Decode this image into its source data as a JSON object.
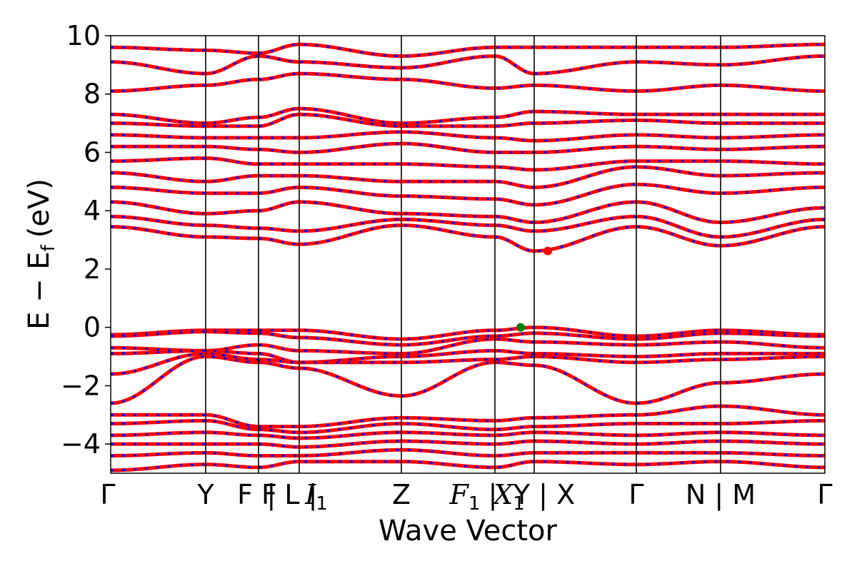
{
  "chart_data": {
    "type": "line",
    "xlabel": "Wave Vector",
    "ylabel": "E − E",
    "ylabel_sub": "f",
    "ylabel_unit": "(eV)",
    "ylim": [
      -5,
      10
    ],
    "xlim": [
      0,
      1
    ],
    "yticks": [
      10,
      8,
      6,
      4,
      2,
      0,
      -2,
      -4
    ],
    "ytick_labels": [
      "10",
      "8",
      "6",
      "4",
      "2",
      "0",
      "−2",
      "−4"
    ],
    "grid": false,
    "legend": "none",
    "colors": {
      "bands_up": "#ff0000",
      "bands_down": "#0000ff",
      "cbm": "#ff0000",
      "vbm": "#008000",
      "kpath": "#000000"
    },
    "kpoints": [
      {
        "x": 0.0,
        "label": "Γ"
      },
      {
        "x": 0.133,
        "label": "Y"
      },
      {
        "x": 0.207,
        "label": "F F"
      },
      {
        "x": 0.264,
        "label": "| L |"
      },
      {
        "x": 0.407,
        "label": "Z"
      },
      {
        "x": 0.538,
        "label": "X"
      },
      {
        "x": 0.593,
        "label": "Y | X"
      },
      {
        "x": 0.736,
        "label": "Γ"
      },
      {
        "x": 0.854,
        "label": "N | M"
      },
      {
        "x": 1.0,
        "label": "Γ"
      }
    ],
    "kpoint_subscripts": {
      "l_label": "1",
      "f_label": "1",
      "x_label": "1"
    },
    "kpoint_italic": {
      "l_label": "I",
      "f_label": "F",
      "x_label": "X"
    },
    "valence_band_max": {
      "x": 0.574,
      "y": 0.0
    },
    "conduction_band_min": {
      "x": 0.612,
      "y": 2.62
    },
    "series": [
      {
        "values_x": [
          0,
          0.133,
          0.207,
          0.264,
          0.407,
          0.538,
          0.593,
          0.736,
          0.854,
          1
        ],
        "values": [
          -0.25,
          -0.1,
          -0.1,
          -0.1,
          -0.4,
          -0.1,
          0.0,
          -0.3,
          -0.1,
          -0.25
        ]
      },
      {
        "values_x": [
          0,
          0.133,
          0.207,
          0.264,
          0.407,
          0.538,
          0.593,
          0.736,
          0.854,
          1
        ],
        "values": [
          -0.3,
          -0.15,
          -0.2,
          -0.35,
          -0.6,
          -0.3,
          -0.2,
          -0.4,
          -0.2,
          -0.3
        ]
      },
      {
        "values_x": [
          0,
          0.133,
          0.207,
          0.264,
          0.407,
          0.538,
          0.593,
          0.736,
          0.854,
          1
        ],
        "values": [
          -0.7,
          -0.8,
          -0.6,
          -0.8,
          -0.9,
          -0.4,
          -0.5,
          -0.6,
          -0.5,
          -0.7
        ]
      },
      {
        "values_x": [
          0,
          0.133,
          0.207,
          0.264,
          0.407,
          0.538,
          0.593,
          0.736,
          0.854,
          1
        ],
        "values": [
          -0.9,
          -0.8,
          -0.9,
          -1.2,
          -1.0,
          -0.8,
          -0.9,
          -1.0,
          -0.9,
          -0.9
        ]
      },
      {
        "values_x": [
          0,
          0.133,
          0.207,
          0.264,
          0.407,
          0.538,
          0.593,
          0.736,
          0.854,
          1
        ],
        "values": [
          -1.6,
          -0.9,
          -1.1,
          -1.2,
          -1.2,
          -1.1,
          -1.0,
          -1.2,
          -1.1,
          -1.0
        ]
      },
      {
        "values_x": [
          0,
          0.133,
          0.207,
          0.264,
          0.407,
          0.538,
          0.593,
          0.736,
          0.854,
          1
        ],
        "values": [
          -2.6,
          -1.0,
          -1.2,
          -1.4,
          -2.35,
          -1.2,
          -1.3,
          -2.6,
          -1.9,
          -1.6
        ]
      },
      {
        "values_x": [
          0,
          0.133,
          0.207,
          0.264,
          0.407,
          0.538,
          0.593,
          0.736,
          0.854,
          1
        ],
        "values": [
          -3.0,
          -3.0,
          -3.4,
          -3.4,
          -3.1,
          -3.2,
          -3.1,
          -3.0,
          -2.7,
          -3.0
        ]
      },
      {
        "values_x": [
          0,
          0.133,
          0.207,
          0.264,
          0.407,
          0.538,
          0.593,
          0.736,
          0.854,
          1
        ],
        "values": [
          -3.3,
          -3.2,
          -3.5,
          -3.6,
          -3.3,
          -3.5,
          -3.4,
          -3.3,
          -3.3,
          -3.2
        ]
      },
      {
        "values_x": [
          0,
          0.133,
          0.207,
          0.264,
          0.407,
          0.538,
          0.593,
          0.736,
          0.854,
          1
        ],
        "values": [
          -3.7,
          -3.6,
          -3.7,
          -3.8,
          -3.6,
          -3.7,
          -3.6,
          -3.7,
          -3.6,
          -3.7
        ]
      },
      {
        "values_x": [
          0,
          0.133,
          0.207,
          0.264,
          0.407,
          0.538,
          0.593,
          0.736,
          0.854,
          1
        ],
        "values": [
          -4.0,
          -4.0,
          -4.0,
          -4.1,
          -3.9,
          -4.0,
          -3.9,
          -4.0,
          -3.9,
          -4.0
        ]
      },
      {
        "values_x": [
          0,
          0.133,
          0.207,
          0.264,
          0.407,
          0.538,
          0.593,
          0.736,
          0.854,
          1
        ],
        "values": [
          -4.4,
          -4.3,
          -4.4,
          -4.4,
          -4.2,
          -4.4,
          -4.3,
          -4.3,
          -4.3,
          -4.4
        ]
      },
      {
        "values_x": [
          0,
          0.133,
          0.207,
          0.264,
          0.407,
          0.538,
          0.593,
          0.736,
          0.854,
          1
        ],
        "values": [
          -4.9,
          -4.7,
          -4.8,
          -4.6,
          -4.6,
          -4.8,
          -4.6,
          -4.7,
          -4.6,
          -4.8
        ]
      },
      {
        "values_x": [
          0,
          0.133,
          0.207,
          0.264,
          0.407,
          0.538,
          0.593,
          0.736,
          0.854,
          1
        ],
        "values": [
          3.45,
          3.1,
          3.05,
          2.85,
          3.5,
          3.1,
          2.62,
          3.45,
          2.8,
          3.45
        ]
      },
      {
        "values_x": [
          0,
          0.133,
          0.207,
          0.264,
          0.407,
          0.538,
          0.593,
          0.736,
          0.854,
          1
        ],
        "values": [
          3.8,
          3.5,
          3.4,
          3.3,
          3.7,
          3.5,
          3.3,
          3.8,
          3.1,
          3.7
        ]
      },
      {
        "values_x": [
          0,
          0.133,
          0.207,
          0.264,
          0.407,
          0.538,
          0.593,
          0.736,
          0.854,
          1
        ],
        "values": [
          4.3,
          3.9,
          4.0,
          4.3,
          3.9,
          3.8,
          3.6,
          4.3,
          3.6,
          4.1
        ]
      },
      {
        "values_x": [
          0,
          0.133,
          0.207,
          0.264,
          0.407,
          0.538,
          0.593,
          0.736,
          0.854,
          1
        ],
        "values": [
          4.8,
          4.6,
          4.6,
          4.8,
          4.5,
          4.4,
          4.2,
          4.9,
          4.6,
          4.8
        ]
      },
      {
        "values_x": [
          0,
          0.133,
          0.207,
          0.264,
          0.407,
          0.538,
          0.593,
          0.736,
          0.854,
          1
        ],
        "values": [
          5.3,
          5.0,
          5.2,
          5.2,
          5.0,
          5.0,
          4.8,
          5.5,
          5.2,
          5.3
        ]
      },
      {
        "values_x": [
          0,
          0.133,
          0.207,
          0.264,
          0.407,
          0.538,
          0.593,
          0.736,
          0.854,
          1
        ],
        "values": [
          5.7,
          5.8,
          5.6,
          5.6,
          5.6,
          5.5,
          5.4,
          5.7,
          5.7,
          5.6
        ]
      },
      {
        "values_x": [
          0,
          0.133,
          0.207,
          0.264,
          0.407,
          0.538,
          0.593,
          0.736,
          0.854,
          1
        ],
        "values": [
          6.2,
          6.2,
          6.1,
          6.0,
          6.3,
          6.0,
          6.0,
          6.2,
          6.1,
          6.2
        ]
      },
      {
        "values_x": [
          0,
          0.133,
          0.207,
          0.264,
          0.407,
          0.538,
          0.593,
          0.736,
          0.854,
          1
        ],
        "values": [
          6.6,
          6.5,
          6.5,
          6.5,
          6.7,
          6.5,
          6.4,
          6.6,
          6.5,
          6.6
        ]
      },
      {
        "values_x": [
          0,
          0.133,
          0.207,
          0.264,
          0.407,
          0.538,
          0.593,
          0.736,
          0.854,
          1
        ],
        "values": [
          7.0,
          6.9,
          6.9,
          7.3,
          6.9,
          6.9,
          7.0,
          7.1,
          7.0,
          7.0
        ]
      },
      {
        "values_x": [
          0,
          0.133,
          0.207,
          0.264,
          0.407,
          0.538,
          0.593,
          0.736,
          0.854,
          1
        ],
        "values": [
          7.3,
          7.0,
          7.2,
          7.5,
          7.0,
          7.2,
          7.4,
          7.3,
          7.3,
          7.3
        ]
      },
      {
        "values_x": [
          0,
          0.133,
          0.207,
          0.264,
          0.407,
          0.538,
          0.593,
          0.736,
          0.854,
          1
        ],
        "values": [
          8.1,
          8.3,
          8.5,
          8.7,
          8.5,
          8.2,
          8.3,
          8.1,
          8.3,
          8.1
        ]
      },
      {
        "values_x": [
          0,
          0.133,
          0.207,
          0.264,
          0.407,
          0.538,
          0.593,
          0.736,
          0.854,
          1
        ],
        "values": [
          9.1,
          8.7,
          9.3,
          9.1,
          8.9,
          9.3,
          8.7,
          9.1,
          9.0,
          9.3
        ]
      },
      {
        "values_x": [
          0,
          0.133,
          0.207,
          0.264,
          0.407,
          0.538,
          0.593,
          0.736,
          0.854,
          1
        ],
        "values": [
          9.6,
          9.5,
          9.4,
          9.7,
          9.3,
          9.6,
          9.6,
          9.6,
          9.6,
          9.7
        ]
      }
    ]
  }
}
